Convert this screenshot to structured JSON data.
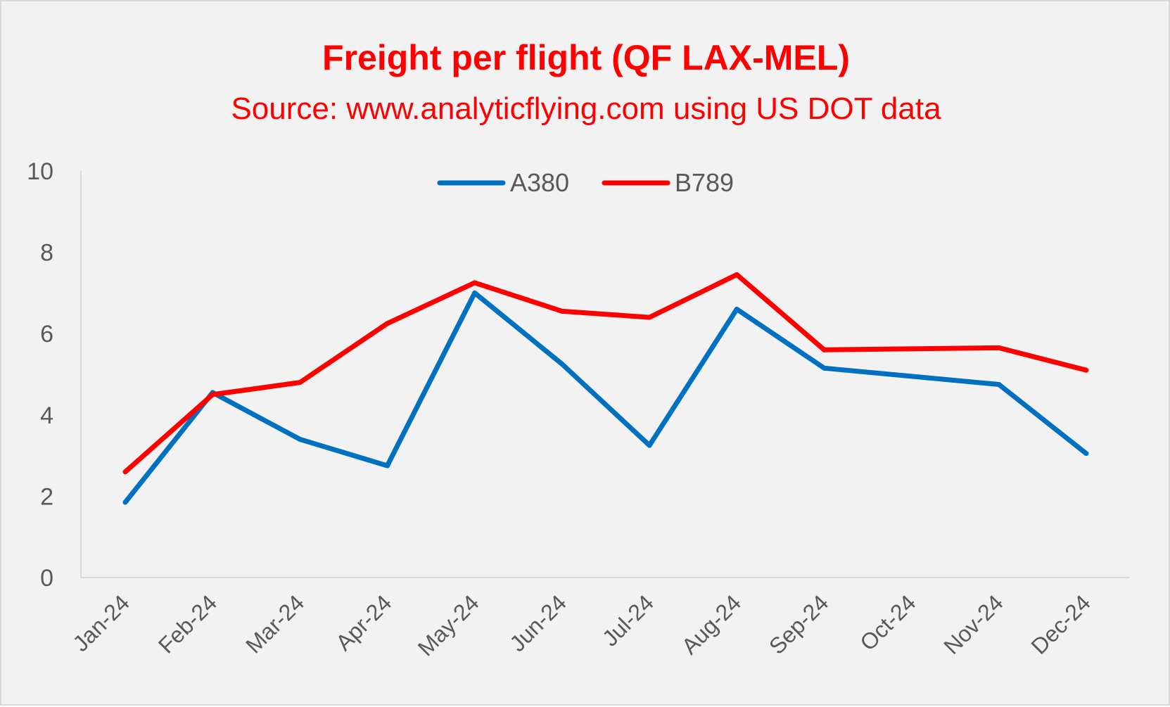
{
  "chart_data": {
    "type": "line",
    "title": "Freight per flight (QF LAX-MEL)",
    "subtitle": "Source: www.analyticflying.com using US DOT data",
    "categories": [
      "Jan-24",
      "Feb-24",
      "Mar-24",
      "Apr-24",
      "May-24",
      "Jun-24",
      "Jul-24",
      "Aug-24",
      "Sep-24",
      "Oct-24",
      "Nov-24",
      "Dec-24"
    ],
    "series": [
      {
        "name": "A380",
        "color": "#0070c0",
        "values": [
          1.85,
          4.55,
          3.4,
          2.75,
          7.0,
          5.25,
          3.25,
          6.6,
          5.15,
          null,
          4.75,
          3.05
        ]
      },
      {
        "name": "B789",
        "color": "#ff0000",
        "values": [
          2.6,
          4.5,
          4.8,
          6.25,
          7.25,
          6.55,
          6.4,
          7.45,
          5.6,
          null,
          5.65,
          5.1
        ]
      }
    ],
    "ylim": [
      0,
      10
    ],
    "yticks": [
      0,
      2,
      4,
      6,
      8,
      10
    ],
    "ytick_labels": [
      "0",
      "2",
      "4",
      "6",
      "8",
      "10"
    ],
    "xlabel": "",
    "ylabel": "",
    "grid": false,
    "legend_position": "top-center",
    "title_color": "#ff0000",
    "background_color": "#f2f2f2",
    "axis_color": "#d9d9d9",
    "tick_label_color": "#595959"
  }
}
